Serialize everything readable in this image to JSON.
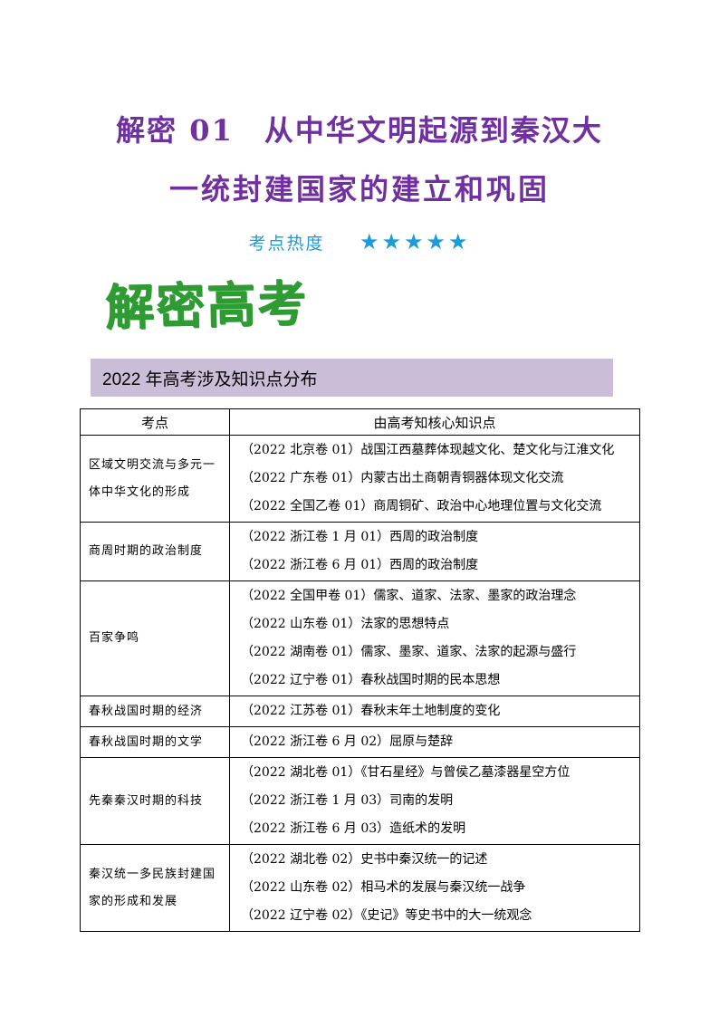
{
  "header": {
    "title_line1": "解密 01　从中华文明起源到秦汉大",
    "title_line2": "一统封建国家的建立和巩固",
    "heat_label": "考点热度",
    "heat_stars": "★★★★★"
  },
  "section": {
    "logo_text": "解密高考",
    "banner_text": "2022 年高考涉及知识点分布"
  },
  "table": {
    "headers": [
      "考点",
      "由高考知核心知识点"
    ],
    "rows": [
      {
        "topic": "区域文明交流与多元一体中华文化的形成",
        "items": [
          "（2022 北京卷 01）战国江西墓葬体现越文化、楚文化与江淮文化",
          "（2022 广东卷 01）内蒙古出土商朝青铜器体现文化交流",
          "（2022 全国乙卷 01）商周铜矿、政治中心地理位置与文化交流"
        ]
      },
      {
        "topic": "商周时期的政治制度",
        "items": [
          "（2022 浙江卷 1 月 01）西周的政治制度",
          "（2022 浙江卷 6 月 01）西周的政治制度"
        ]
      },
      {
        "topic": "百家争鸣",
        "items": [
          "（2022 全国甲卷 01）儒家、道家、法家、墨家的政治理念",
          "（2022 山东卷 01）法家的思想特点",
          "（2022 湖南卷 01）儒家、墨家、道家、法家的起源与盛行",
          "（2022 辽宁卷 01）春秋战国时期的民本思想"
        ]
      },
      {
        "topic": "春秋战国时期的经济",
        "items": [
          "（2022 江苏卷 01）春秋末年土地制度的变化"
        ]
      },
      {
        "topic": "春秋战国时期的文学",
        "items": [
          "（2022 浙江卷 6 月 02）屈原与楚辞"
        ]
      },
      {
        "topic": "先秦秦汉时期的科技",
        "items": [
          "（2022 湖北卷 01）《甘石星经》与曾侯乙墓漆器星空方位",
          "（2022 浙江卷 1 月 03）司南的发明",
          "（2022 浙江卷 6 月 03）造纸术的发明"
        ]
      },
      {
        "topic": "秦汉统一多民族封建国家的形成和发展",
        "items": [
          "（2022 湖北卷 02）史书中秦汉统一的记述",
          "（2022 山东卷 02）相马术的发展与秦汉统一战争",
          "（2022 辽宁卷 02）《史记》等史书中的大一统观念"
        ]
      }
    ]
  },
  "colors": {
    "title_purple": "#7030A0",
    "heat_blue": "#1B9CD8",
    "logo_green": "#2E9B33",
    "banner_bg": "#C9BDD7",
    "table_border": "#000000"
  }
}
